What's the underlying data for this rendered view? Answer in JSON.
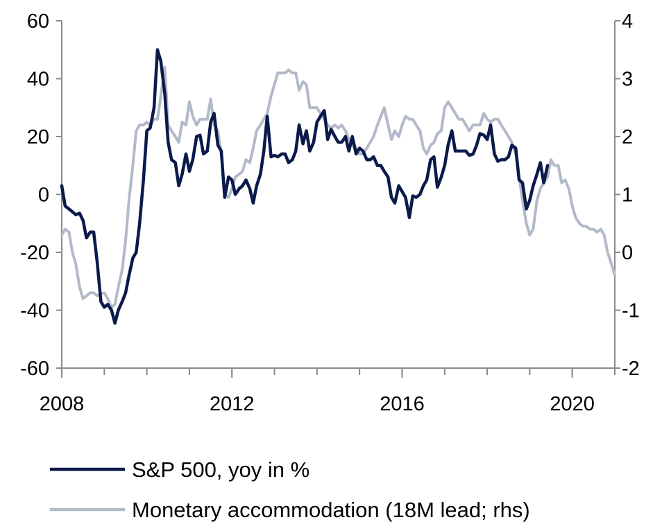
{
  "chart_data": {
    "type": "line",
    "title": "",
    "xlabel": "",
    "ylabel": "",
    "y2label": "",
    "x_ticks": [
      "2008",
      "2012",
      "2016",
      "2020"
    ],
    "x_range": [
      2008,
      2021
    ],
    "ylim": [
      -60,
      60
    ],
    "y_ticks": [
      60,
      40,
      20,
      0,
      -20,
      -40,
      -60
    ],
    "y2lim": [
      -2,
      4
    ],
    "y2_ticks": [
      4,
      3,
      2,
      1,
      0,
      -1,
      -2
    ],
    "grid": false,
    "legend_placement": "bottom-left",
    "series": [
      {
        "name": "S&P 500, yoy in %",
        "axis": "left",
        "color": "#0b1a4a",
        "points": [
          [
            2008.0,
            3
          ],
          [
            2008.08,
            -4
          ],
          [
            2008.17,
            -5
          ],
          [
            2008.25,
            -6
          ],
          [
            2008.33,
            -7
          ],
          [
            2008.42,
            -6.5
          ],
          [
            2008.5,
            -9
          ],
          [
            2008.58,
            -15
          ],
          [
            2008.67,
            -13
          ],
          [
            2008.75,
            -13
          ],
          [
            2008.83,
            -23
          ],
          [
            2008.92,
            -37
          ],
          [
            2009.0,
            -39
          ],
          [
            2009.08,
            -38
          ],
          [
            2009.17,
            -40
          ],
          [
            2009.25,
            -44.5
          ],
          [
            2009.33,
            -40
          ],
          [
            2009.42,
            -37
          ],
          [
            2009.5,
            -34
          ],
          [
            2009.58,
            -28
          ],
          [
            2009.67,
            -22
          ],
          [
            2009.75,
            -20
          ],
          [
            2009.83,
            -10
          ],
          [
            2009.92,
            5
          ],
          [
            2010.0,
            22
          ],
          [
            2010.08,
            23
          ],
          [
            2010.17,
            30
          ],
          [
            2010.25,
            50
          ],
          [
            2010.33,
            46
          ],
          [
            2010.42,
            35
          ],
          [
            2010.5,
            18
          ],
          [
            2010.58,
            12
          ],
          [
            2010.67,
            11
          ],
          [
            2010.75,
            3
          ],
          [
            2010.83,
            7
          ],
          [
            2010.92,
            14
          ],
          [
            2011.0,
            8
          ],
          [
            2011.08,
            12
          ],
          [
            2011.17,
            20
          ],
          [
            2011.25,
            20.5
          ],
          [
            2011.33,
            14
          ],
          [
            2011.42,
            15
          ],
          [
            2011.5,
            25
          ],
          [
            2011.58,
            28
          ],
          [
            2011.67,
            17
          ],
          [
            2011.75,
            15
          ],
          [
            2011.83,
            -1
          ],
          [
            2011.92,
            6
          ],
          [
            2012.0,
            5
          ],
          [
            2012.08,
            0
          ],
          [
            2012.17,
            2
          ],
          [
            2012.25,
            3
          ],
          [
            2012.33,
            5
          ],
          [
            2012.42,
            2
          ],
          [
            2012.5,
            -3
          ],
          [
            2012.58,
            3
          ],
          [
            2012.67,
            7
          ],
          [
            2012.75,
            15
          ],
          [
            2012.83,
            27
          ],
          [
            2012.92,
            13
          ],
          [
            2013.0,
            13.5
          ],
          [
            2013.08,
            13
          ],
          [
            2013.17,
            14
          ],
          [
            2013.25,
            14
          ],
          [
            2013.33,
            11
          ],
          [
            2013.42,
            12
          ],
          [
            2013.5,
            15
          ],
          [
            2013.58,
            24
          ],
          [
            2013.67,
            17.5
          ],
          [
            2013.75,
            22
          ],
          [
            2013.83,
            15
          ],
          [
            2013.92,
            18
          ],
          [
            2014.0,
            25
          ],
          [
            2014.08,
            27
          ],
          [
            2014.17,
            29
          ],
          [
            2014.25,
            19
          ],
          [
            2014.33,
            22.5
          ],
          [
            2014.42,
            20
          ],
          [
            2014.5,
            18
          ],
          [
            2014.58,
            18
          ],
          [
            2014.67,
            20
          ],
          [
            2014.75,
            15
          ],
          [
            2014.83,
            20
          ],
          [
            2014.92,
            14
          ],
          [
            2015.0,
            16
          ],
          [
            2015.08,
            15
          ],
          [
            2015.17,
            12
          ],
          [
            2015.25,
            12
          ],
          [
            2015.33,
            13
          ],
          [
            2015.42,
            10
          ],
          [
            2015.5,
            10
          ],
          [
            2015.58,
            8
          ],
          [
            2015.67,
            6
          ],
          [
            2015.75,
            -1
          ],
          [
            2015.83,
            -3
          ],
          [
            2015.92,
            3
          ],
          [
            2016.0,
            1
          ],
          [
            2016.08,
            -1
          ],
          [
            2016.17,
            -8
          ],
          [
            2016.25,
            -0.5
          ],
          [
            2016.33,
            -1
          ],
          [
            2016.42,
            0
          ],
          [
            2016.5,
            3
          ],
          [
            2016.58,
            5
          ],
          [
            2016.67,
            12
          ],
          [
            2016.75,
            13
          ],
          [
            2016.83,
            2.5
          ],
          [
            2016.92,
            6
          ],
          [
            2017.0,
            10
          ],
          [
            2017.08,
            17
          ],
          [
            2017.17,
            22
          ],
          [
            2017.25,
            15
          ],
          [
            2017.33,
            15
          ],
          [
            2017.42,
            15
          ],
          [
            2017.5,
            15
          ],
          [
            2017.58,
            13.5
          ],
          [
            2017.67,
            14
          ],
          [
            2017.75,
            17
          ],
          [
            2017.83,
            21
          ],
          [
            2017.92,
            20.5
          ],
          [
            2018.0,
            19
          ],
          [
            2018.08,
            24
          ],
          [
            2018.17,
            14
          ],
          [
            2018.25,
            11.5
          ],
          [
            2018.33,
            12
          ],
          [
            2018.42,
            12
          ],
          [
            2018.5,
            13
          ],
          [
            2018.58,
            17
          ],
          [
            2018.67,
            16
          ],
          [
            2018.75,
            5
          ],
          [
            2018.83,
            4
          ],
          [
            2018.92,
            -5
          ],
          [
            2019.0,
            -2
          ],
          [
            2019.08,
            3
          ],
          [
            2019.17,
            7
          ],
          [
            2019.25,
            11
          ],
          [
            2019.33,
            4
          ],
          [
            2019.42,
            10
          ]
        ]
      },
      {
        "name": "Monetary accommodation (18M lead; rhs)",
        "axis": "right",
        "color": "#b2bac9",
        "points": [
          [
            2008.0,
            0.3
          ],
          [
            2008.08,
            0.4
          ],
          [
            2008.17,
            0.35
          ],
          [
            2008.25,
            0
          ],
          [
            2008.33,
            -0.2
          ],
          [
            2008.42,
            -0.6
          ],
          [
            2008.5,
            -0.8
          ],
          [
            2008.58,
            -0.75
          ],
          [
            2008.67,
            -0.7
          ],
          [
            2008.75,
            -0.7
          ],
          [
            2008.83,
            -0.75
          ],
          [
            2008.92,
            -0.72
          ],
          [
            2009.0,
            -0.7
          ],
          [
            2009.08,
            -0.8
          ],
          [
            2009.17,
            -0.95
          ],
          [
            2009.25,
            -0.9
          ],
          [
            2009.33,
            -0.6
          ],
          [
            2009.42,
            -0.3
          ],
          [
            2009.5,
            0.2
          ],
          [
            2009.58,
            0.9
          ],
          [
            2009.67,
            1.5
          ],
          [
            2009.75,
            2.1
          ],
          [
            2009.83,
            2.2
          ],
          [
            2009.92,
            2.2
          ],
          [
            2010.0,
            2.25
          ],
          [
            2010.08,
            2.2
          ],
          [
            2010.17,
            2.3
          ],
          [
            2010.25,
            2.3
          ],
          [
            2010.33,
            2.7
          ],
          [
            2010.42,
            3.2
          ],
          [
            2010.5,
            2.2
          ],
          [
            2010.58,
            2.1
          ],
          [
            2010.67,
            2.0
          ],
          [
            2010.75,
            1.9
          ],
          [
            2010.83,
            2.25
          ],
          [
            2010.92,
            2.2
          ],
          [
            2011.0,
            2.6
          ],
          [
            2011.08,
            2.35
          ],
          [
            2011.17,
            2.2
          ],
          [
            2011.25,
            2.3
          ],
          [
            2011.33,
            2.3
          ],
          [
            2011.42,
            2.3
          ],
          [
            2011.5,
            2.65
          ],
          [
            2011.58,
            2.2
          ],
          [
            2011.67,
            2.1
          ],
          [
            2011.75,
            1.7
          ],
          [
            2011.83,
            1.0
          ],
          [
            2011.92,
            0.95
          ],
          [
            2012.0,
            1.1
          ],
          [
            2012.08,
            1.3
          ],
          [
            2012.17,
            1.35
          ],
          [
            2012.25,
            1.4
          ],
          [
            2012.33,
            1.6
          ],
          [
            2012.42,
            1.55
          ],
          [
            2012.5,
            1.8
          ],
          [
            2012.58,
            2.1
          ],
          [
            2012.67,
            2.2
          ],
          [
            2012.75,
            2.3
          ],
          [
            2012.83,
            2.4
          ],
          [
            2012.92,
            2.7
          ],
          [
            2013.0,
            2.9
          ],
          [
            2013.08,
            3.1
          ],
          [
            2013.17,
            3.1
          ],
          [
            2013.25,
            3.1
          ],
          [
            2013.33,
            3.15
          ],
          [
            2013.42,
            3.1
          ],
          [
            2013.5,
            3.1
          ],
          [
            2013.58,
            2.8
          ],
          [
            2013.67,
            2.95
          ],
          [
            2013.75,
            2.9
          ],
          [
            2013.83,
            2.5
          ],
          [
            2013.92,
            2.5
          ],
          [
            2014.0,
            2.5
          ],
          [
            2014.08,
            2.4
          ],
          [
            2014.17,
            2.3
          ],
          [
            2014.25,
            2.2
          ],
          [
            2014.33,
            2.15
          ],
          [
            2014.42,
            2.2
          ],
          [
            2014.5,
            2.15
          ],
          [
            2014.58,
            2.2
          ],
          [
            2014.67,
            2.1
          ],
          [
            2014.75,
            1.95
          ],
          [
            2014.83,
            1.85
          ],
          [
            2014.92,
            1.8
          ],
          [
            2015.0,
            1.7
          ],
          [
            2015.08,
            1.7
          ],
          [
            2015.17,
            1.8
          ],
          [
            2015.25,
            1.9
          ],
          [
            2015.33,
            2.0
          ],
          [
            2015.42,
            2.2
          ],
          [
            2015.5,
            2.35
          ],
          [
            2015.58,
            2.5
          ],
          [
            2015.67,
            2.2
          ],
          [
            2015.75,
            1.95
          ],
          [
            2015.83,
            2.1
          ],
          [
            2015.92,
            2.0
          ],
          [
            2016.0,
            2.2
          ],
          [
            2016.08,
            2.35
          ],
          [
            2016.17,
            2.3
          ],
          [
            2016.25,
            2.3
          ],
          [
            2016.33,
            2.2
          ],
          [
            2016.42,
            2.1
          ],
          [
            2016.5,
            1.8
          ],
          [
            2016.58,
            1.7
          ],
          [
            2016.67,
            1.85
          ],
          [
            2016.75,
            1.9
          ],
          [
            2016.83,
            2.05
          ],
          [
            2016.92,
            2.1
          ],
          [
            2017.0,
            2.5
          ],
          [
            2017.08,
            2.6
          ],
          [
            2017.17,
            2.5
          ],
          [
            2017.25,
            2.4
          ],
          [
            2017.33,
            2.3
          ],
          [
            2017.42,
            2.3
          ],
          [
            2017.5,
            2.2
          ],
          [
            2017.58,
            2.1
          ],
          [
            2017.67,
            2.2
          ],
          [
            2017.75,
            2.2
          ],
          [
            2017.83,
            2.2
          ],
          [
            2017.92,
            2.4
          ],
          [
            2018.0,
            2.3
          ],
          [
            2018.08,
            2.25
          ],
          [
            2018.17,
            2.3
          ],
          [
            2018.25,
            2.3
          ],
          [
            2018.33,
            2.2
          ],
          [
            2018.42,
            2.1
          ],
          [
            2018.5,
            2.0
          ],
          [
            2018.58,
            1.9
          ],
          [
            2018.67,
            1.7
          ],
          [
            2018.75,
            1.3
          ],
          [
            2018.83,
            0.9
          ],
          [
            2018.92,
            0.5
          ],
          [
            2019.0,
            0.3
          ],
          [
            2019.08,
            0.4
          ],
          [
            2019.17,
            0.9
          ],
          [
            2019.25,
            1.1
          ],
          [
            2019.33,
            1.2
          ],
          [
            2019.42,
            1.3
          ],
          [
            2019.5,
            1.6
          ],
          [
            2019.58,
            1.5
          ],
          [
            2019.67,
            1.5
          ],
          [
            2019.75,
            1.2
          ],
          [
            2019.83,
            1.25
          ],
          [
            2019.92,
            1.1
          ],
          [
            2020.0,
            0.8
          ],
          [
            2020.08,
            0.6
          ],
          [
            2020.17,
            0.5
          ],
          [
            2020.25,
            0.45
          ],
          [
            2020.33,
            0.45
          ],
          [
            2020.42,
            0.4
          ],
          [
            2020.5,
            0.4
          ],
          [
            2020.58,
            0.35
          ],
          [
            2020.67,
            0.4
          ],
          [
            2020.75,
            0.3
          ],
          [
            2020.83,
            0.0
          ],
          [
            2020.92,
            -0.2
          ],
          [
            2021.0,
            -0.4
          ]
        ]
      }
    ]
  }
}
